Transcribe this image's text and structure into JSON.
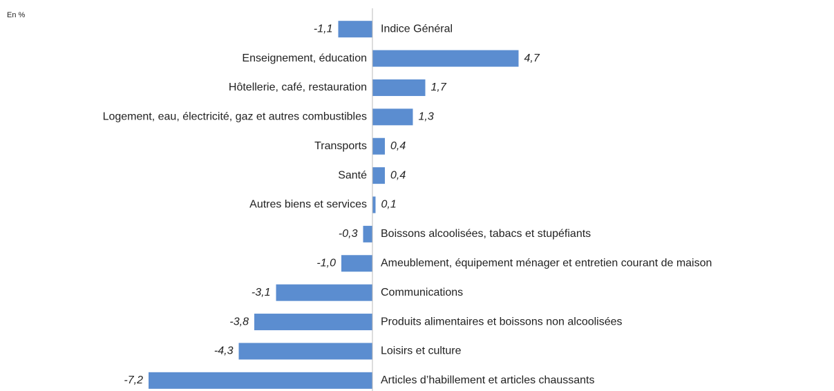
{
  "chart_data": {
    "type": "hbar",
    "subtitle": "En %",
    "categories": [
      "Indice Général",
      "Enseignement,  éducation",
      "Hôtellerie,  café, restauration",
      "Logement, eau, électricité,  gaz et autres combustibles",
      "Transports",
      "Santé",
      "Autres biens  et services",
      "Boissons alcoolisées,  tabacs et stupéfiants",
      "Ameublement, équipement  ménager  et entretien  courant de maison",
      "Communications",
      "Produits  alimentaires et boissons  non alcoolisées",
      "Loisirs et culture",
      "Articles d’habillement  et articles chaussants"
    ],
    "values": [
      -1.1,
      4.7,
      1.7,
      1.3,
      0.4,
      0.4,
      0.1,
      -0.3,
      -1.0,
      -3.1,
      -3.8,
      -4.3,
      -7.2
    ],
    "value_labels": [
      "-1,1",
      "4,7",
      "1,7",
      "1,3",
      "0,4",
      "0,4",
      "0,1",
      "-0,3",
      "-1,0",
      "-3,1",
      "-3,8",
      "-4,3",
      "-7,2"
    ],
    "color": "#5b8dd0",
    "xlim": [
      -7.5,
      5
    ]
  }
}
